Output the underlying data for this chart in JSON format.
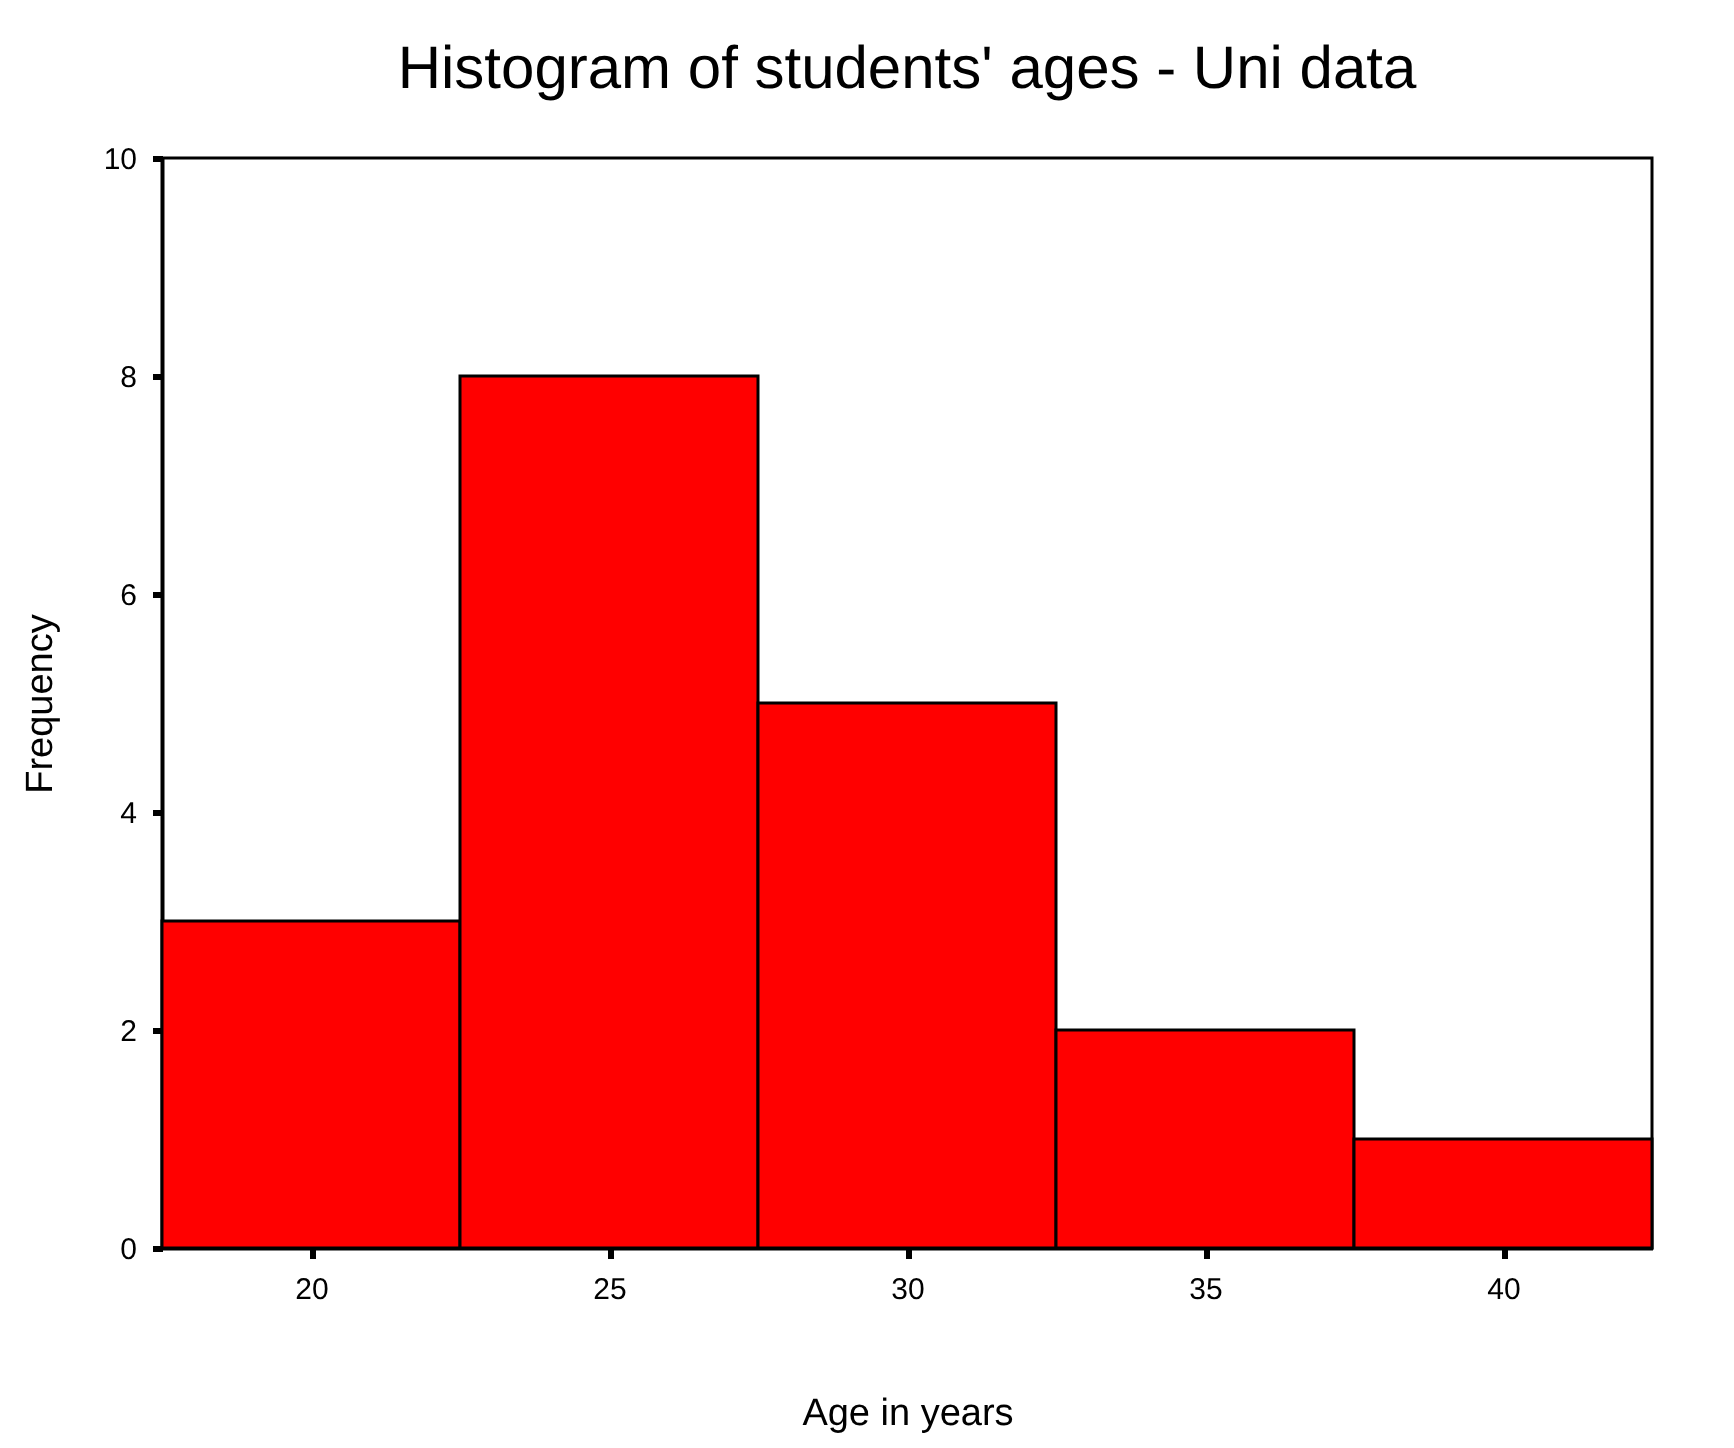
{
  "chart_data": {
    "type": "histogram",
    "title": "Histogram of students' ages - Uni data",
    "xlabel": "Age in years",
    "ylabel": "Frequency",
    "bins": [
      17.5,
      22.5,
      27.5,
      32.5,
      37.5,
      42.5
    ],
    "values": [
      3,
      8,
      5,
      2,
      1
    ],
    "color": "#ff0000",
    "xlim": [
      17.5,
      42.5
    ],
    "xticks": [
      20,
      25,
      30,
      35,
      40
    ],
    "ylim": [
      0,
      10
    ],
    "yticks": [
      0,
      2,
      4,
      6,
      8,
      10
    ],
    "grid": false
  }
}
